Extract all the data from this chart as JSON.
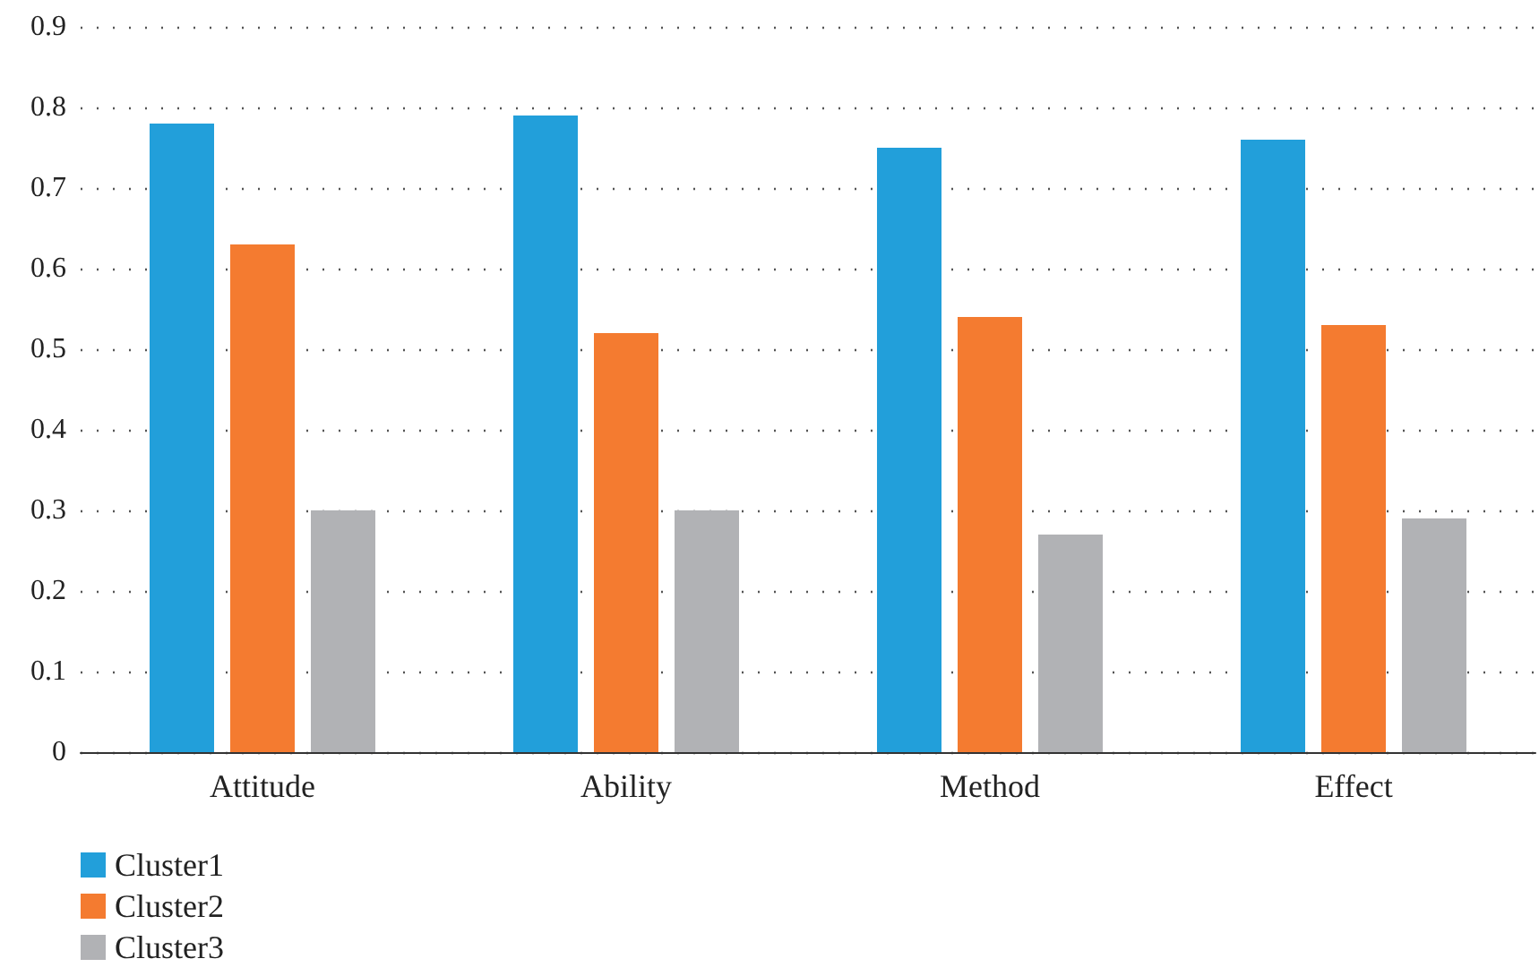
{
  "chart_data": {
    "type": "bar",
    "categories": [
      "Attitude",
      "Ability",
      "Method",
      "Effect"
    ],
    "series": [
      {
        "name": "Cluster1",
        "color": "#229fda",
        "values": [
          0.78,
          0.79,
          0.75,
          0.76
        ]
      },
      {
        "name": "Cluster2",
        "color": "#f47b30",
        "values": [
          0.63,
          0.52,
          0.54,
          0.53
        ]
      },
      {
        "name": "Cluster3",
        "color": "#b1b2b5",
        "values": [
          0.3,
          0.3,
          0.27,
          0.29
        ]
      }
    ],
    "ylim": [
      0,
      0.9
    ],
    "yticks": [
      0,
      0.1,
      0.2,
      0.3,
      0.4,
      0.5,
      0.6,
      0.7,
      0.8,
      0.9
    ],
    "grid": "y",
    "legend": "bottom left"
  }
}
